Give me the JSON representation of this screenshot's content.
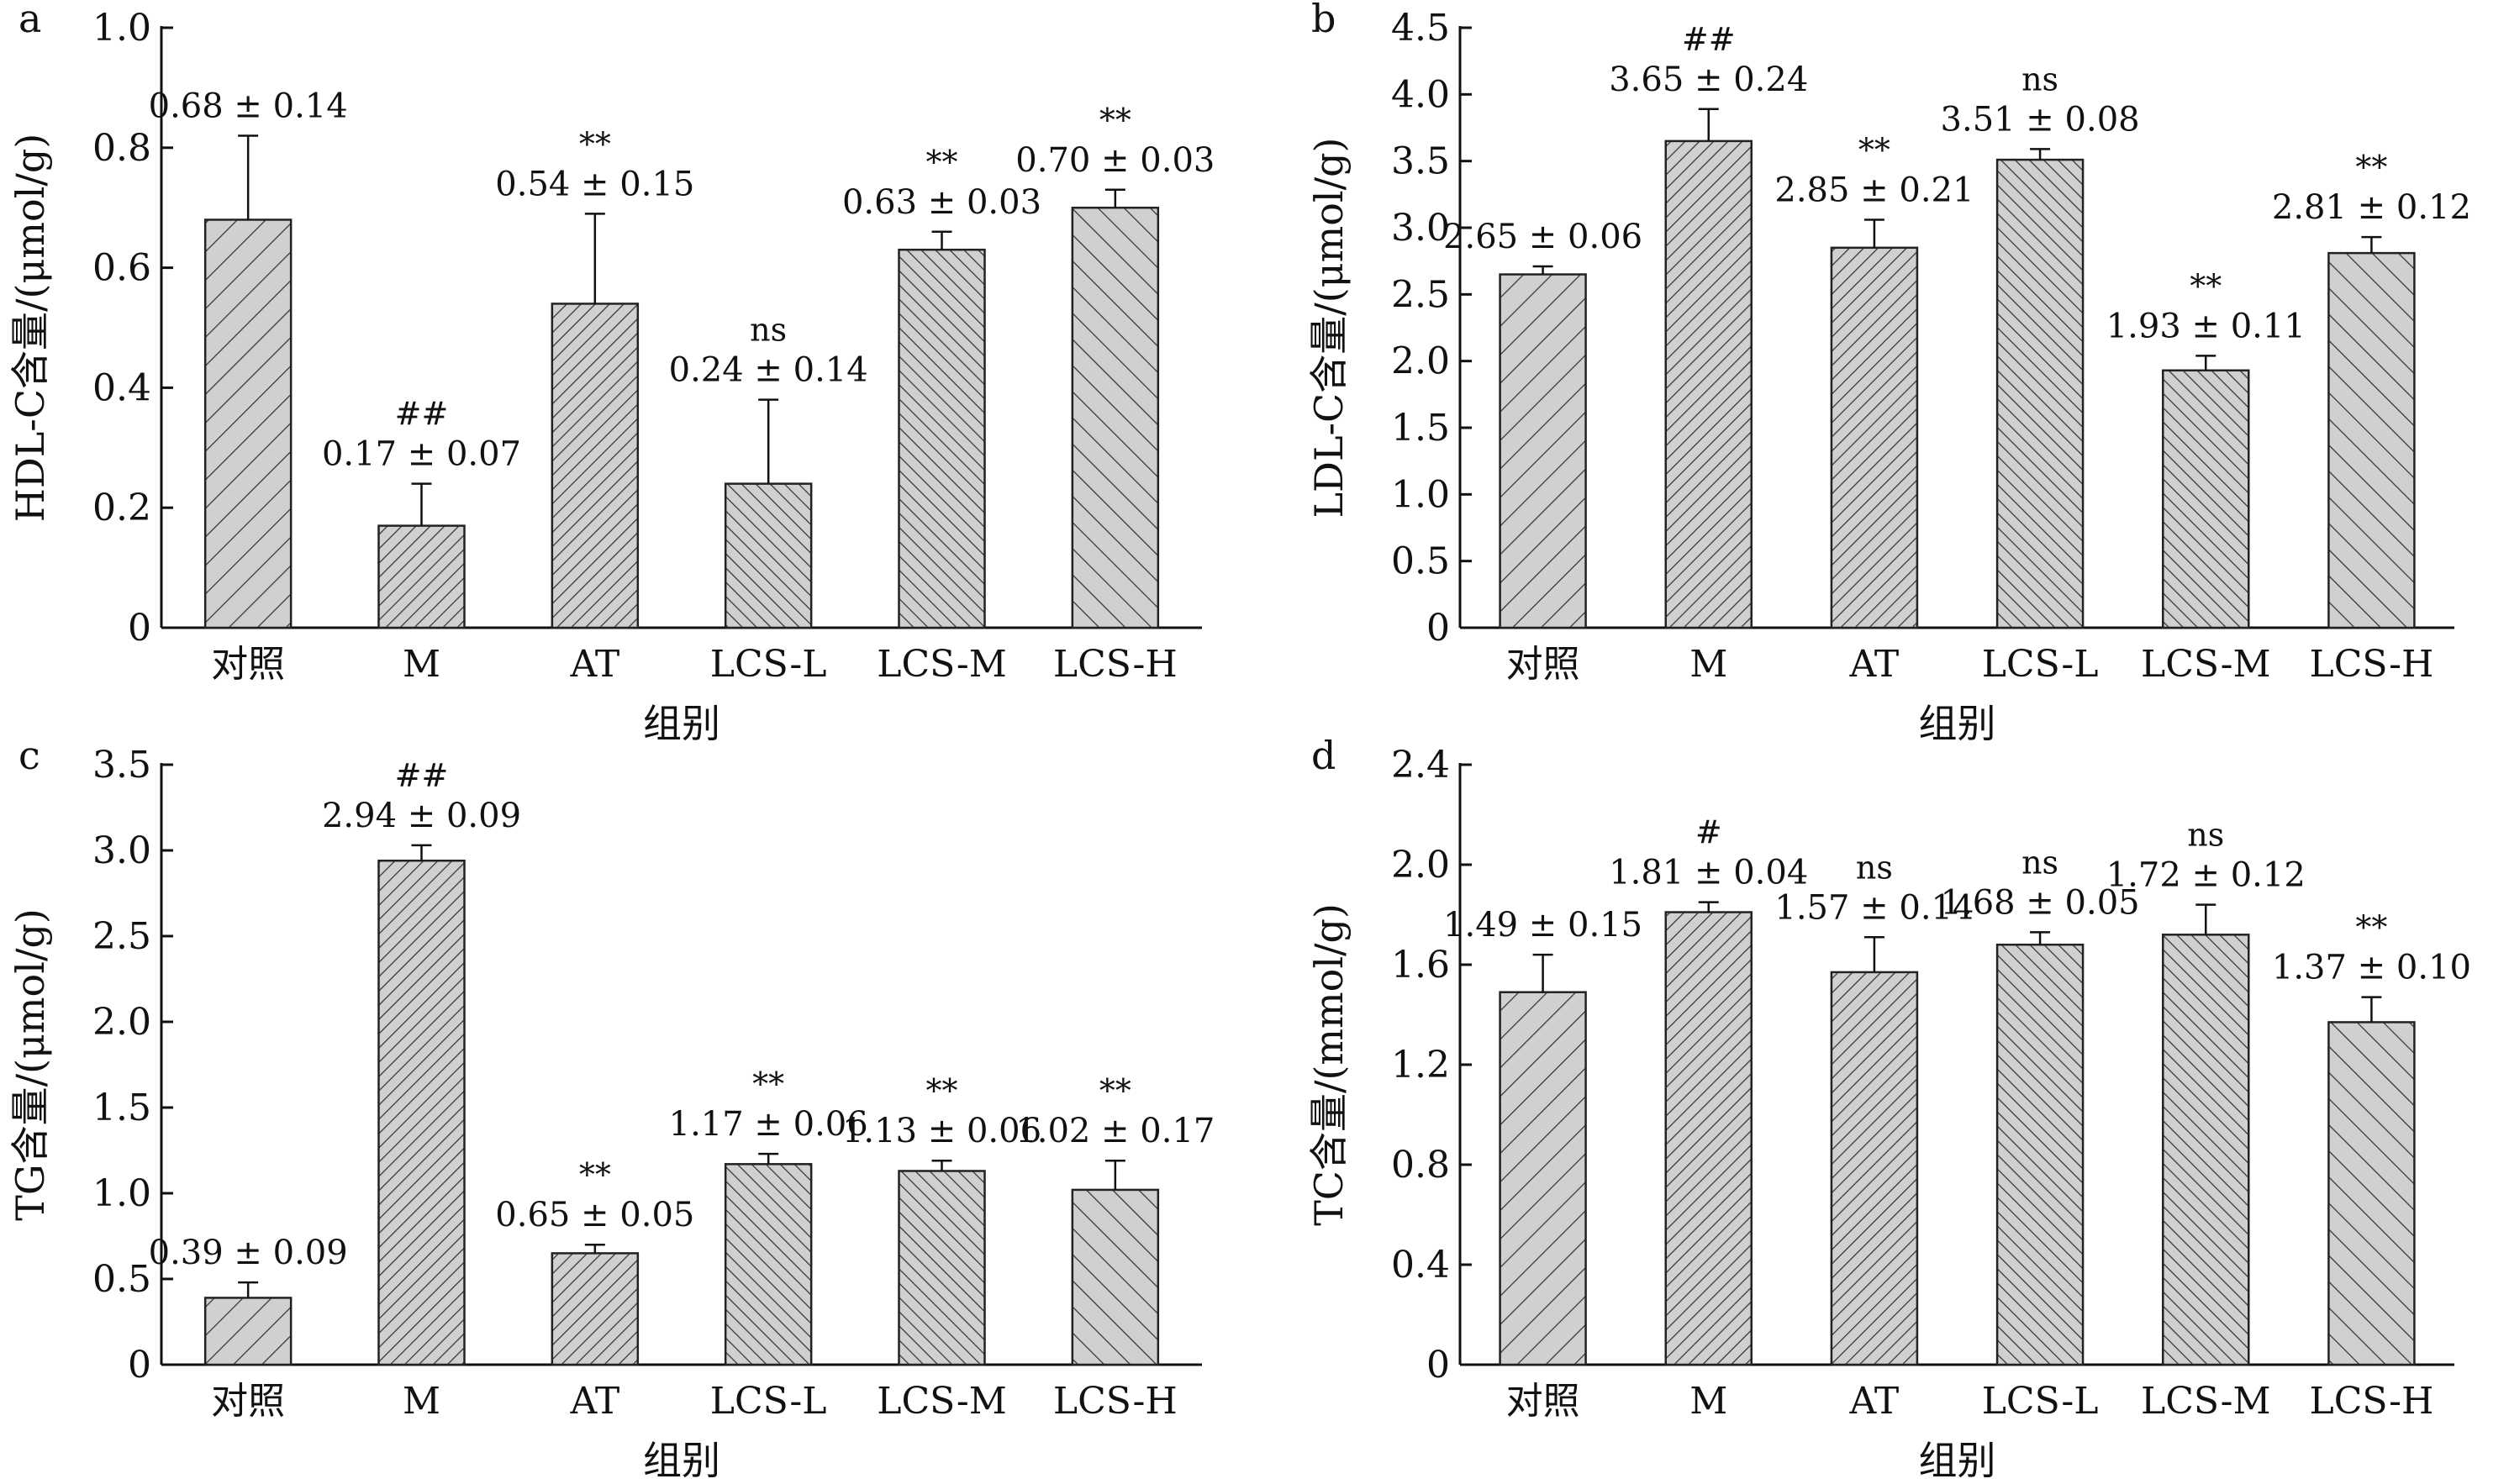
{
  "figure": {
    "xlabel": "组别",
    "categories": [
      "对照",
      "M",
      "AT",
      "LCS-L",
      "LCS-M",
      "LCS-H"
    ]
  },
  "chart_data": [
    {
      "panel": "a",
      "type": "bar",
      "ylabel": "HDL-C含量/(μmol/g)",
      "xlabel": "组别",
      "categories": [
        "对照",
        "M",
        "AT",
        "LCS-L",
        "LCS-M",
        "LCS-H"
      ],
      "values": [
        0.68,
        0.17,
        0.54,
        0.24,
        0.63,
        0.7
      ],
      "errors": [
        0.14,
        0.07,
        0.15,
        0.14,
        0.03,
        0.03
      ],
      "labels": [
        "0.68 ± 0.14",
        "0.17 ± 0.07",
        "0.54 ± 0.15",
        "0.24 ± 0.14",
        "0.63 ± 0.03",
        "0.70 ± 0.03"
      ],
      "significance": [
        "",
        "##",
        "**",
        "ns",
        "**",
        "**"
      ],
      "ylim": [
        0,
        1.0
      ],
      "yticks": [
        0,
        0.2,
        0.4,
        0.6,
        0.8,
        1.0
      ],
      "ytick_labels": [
        "0",
        "0.2",
        "0.4",
        "0.6",
        "0.8",
        "1.0"
      ]
    },
    {
      "panel": "b",
      "type": "bar",
      "ylabel": "LDL-C含量/(μmol/g)",
      "xlabel": "组别",
      "categories": [
        "对照",
        "M",
        "AT",
        "LCS-L",
        "LCS-M",
        "LCS-H"
      ],
      "values": [
        2.65,
        3.65,
        2.85,
        3.51,
        1.93,
        2.81
      ],
      "errors": [
        0.06,
        0.24,
        0.21,
        0.08,
        0.11,
        0.12
      ],
      "labels": [
        "2.65 ± 0.06",
        "3.65 ± 0.24",
        "2.85 ± 0.21",
        "3.51 ± 0.08",
        "1.93 ± 0.11",
        "2.81 ± 0.12"
      ],
      "significance": [
        "",
        "##",
        "**",
        "ns",
        "**",
        "**"
      ],
      "ylim": [
        0,
        4.5
      ],
      "yticks": [
        0,
        0.5,
        1.0,
        1.5,
        2.0,
        2.5,
        3.0,
        3.5,
        4.0,
        4.5
      ],
      "ytick_labels": [
        "0",
        "0.5",
        "1.0",
        "1.5",
        "2.0",
        "2.5",
        "3.0",
        "3.5",
        "4.0",
        "4.5"
      ]
    },
    {
      "panel": "c",
      "type": "bar",
      "ylabel": "TG含量/(μmol/g)",
      "xlabel": "组别",
      "categories": [
        "对照",
        "M",
        "AT",
        "LCS-L",
        "LCS-M",
        "LCS-H"
      ],
      "values": [
        0.39,
        2.94,
        0.65,
        1.17,
        1.13,
        1.02
      ],
      "errors": [
        0.09,
        0.09,
        0.05,
        0.06,
        0.06,
        0.17
      ],
      "labels": [
        "0.39 ± 0.09",
        "2.94 ± 0.09",
        "0.65 ± 0.05",
        "1.17 ± 0.06",
        "1.13 ± 0.06",
        "1.02 ± 0.17"
      ],
      "significance": [
        "",
        "##",
        "**",
        "**",
        "**",
        "**"
      ],
      "ylim": [
        0,
        3.5
      ],
      "yticks": [
        0,
        0.5,
        1.0,
        1.5,
        2.0,
        2.5,
        3.0,
        3.5
      ],
      "ytick_labels": [
        "0",
        "0.5",
        "1.0",
        "1.5",
        "2.0",
        "2.5",
        "3.0",
        "3.5"
      ]
    },
    {
      "panel": "d",
      "type": "bar",
      "ylabel": "TC含量/(mmol/g)",
      "xlabel": "组别",
      "categories": [
        "对照",
        "M",
        "AT",
        "LCS-L",
        "LCS-M",
        "LCS-H"
      ],
      "values": [
        1.49,
        1.81,
        1.57,
        1.68,
        1.72,
        1.37
      ],
      "errors": [
        0.15,
        0.04,
        0.14,
        0.05,
        0.12,
        0.1
      ],
      "labels": [
        "1.49 ± 0.15",
        "1.81 ± 0.04",
        "1.57 ± 0.14",
        "1.68 ± 0.05",
        "1.72 ± 0.12",
        "1.37 ± 0.10"
      ],
      "significance": [
        "",
        "#",
        "ns",
        "ns",
        "ns",
        "**"
      ],
      "ylim": [
        0,
        2.4
      ],
      "yticks": [
        0,
        0.4,
        0.8,
        1.2,
        1.6,
        2.0,
        2.4
      ],
      "ytick_labels": [
        "0",
        "0.4",
        "0.8",
        "1.2",
        "1.6",
        "2.0",
        "2.4"
      ]
    }
  ],
  "style": {
    "bar_fill": "#d0d0d0",
    "bar_stroke": "#222222",
    "hatch_color": "#333333",
    "axis_color": "#111111"
  }
}
